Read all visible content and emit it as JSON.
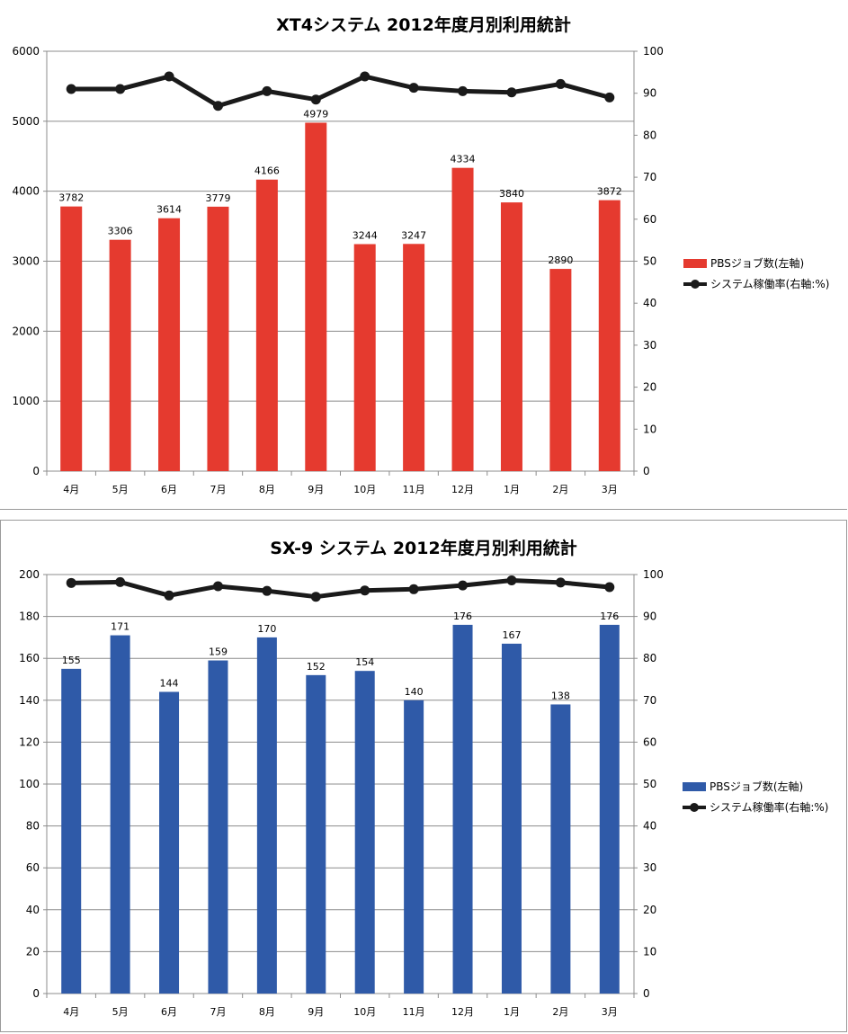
{
  "chart_data": [
    {
      "type": "bar",
      "title": "XT4システム 2012年度月別利用統計",
      "categories": [
        "4月",
        "5月",
        "6月",
        "7月",
        "8月",
        "9月",
        "10月",
        "11月",
        "12月",
        "1月",
        "2月",
        "3月"
      ],
      "series": [
        {
          "name": "PBSジョブ数(左軸)",
          "type": "bar",
          "axis": "left",
          "color": "#e53a2f",
          "values": [
            3782,
            3306,
            3614,
            3779,
            4166,
            4979,
            3244,
            3247,
            4334,
            3840,
            2890,
            3872
          ]
        },
        {
          "name": "システム稼働率(右軸:%)",
          "type": "line",
          "axis": "right",
          "color": "#1a1a1a",
          "values": [
            91,
            91,
            94,
            87,
            90.5,
            88.5,
            94,
            91.3,
            90.5,
            90.2,
            92.2,
            89
          ]
        }
      ],
      "y_left": {
        "min": 0,
        "max": 6000,
        "ticks": [
          "0",
          "1000",
          "2000",
          "3000",
          "4000",
          "5000",
          "6000"
        ]
      },
      "y_right": {
        "min": 0,
        "max": 100,
        "ticks": [
          "0",
          "10",
          "20",
          "30",
          "40",
          "50",
          "60",
          "70",
          "80",
          "90",
          "100"
        ]
      },
      "grid": true,
      "legend": "right"
    },
    {
      "type": "bar",
      "title": "SX-9 システム 2012年度月別利用統計",
      "categories": [
        "4月",
        "5月",
        "6月",
        "7月",
        "8月",
        "9月",
        "10月",
        "11月",
        "12月",
        "1月",
        "2月",
        "3月"
      ],
      "series": [
        {
          "name": "PBSジョブ数(左軸)",
          "type": "bar",
          "axis": "left",
          "color": "#2f5aa8",
          "values": [
            155,
            171,
            144,
            159,
            170,
            152,
            154,
            140,
            176,
            167,
            138,
            176
          ]
        },
        {
          "name": "システム稼働率(右軸:%)",
          "type": "line",
          "axis": "right",
          "color": "#1a1a1a",
          "values": [
            98,
            98.2,
            95,
            97.2,
            96.1,
            94.7,
            96.2,
            96.5,
            97.4,
            98.6,
            98.1,
            97
          ]
        }
      ],
      "y_left": {
        "min": 0,
        "max": 200,
        "ticks": [
          "0",
          "20",
          "40",
          "60",
          "80",
          "100",
          "120",
          "140",
          "160",
          "180",
          "200"
        ]
      },
      "y_right": {
        "min": 0,
        "max": 100,
        "ticks": [
          "0",
          "10",
          "20",
          "30",
          "40",
          "50",
          "60",
          "70",
          "80",
          "90",
          "100"
        ]
      },
      "grid": true,
      "legend": "right"
    }
  ]
}
